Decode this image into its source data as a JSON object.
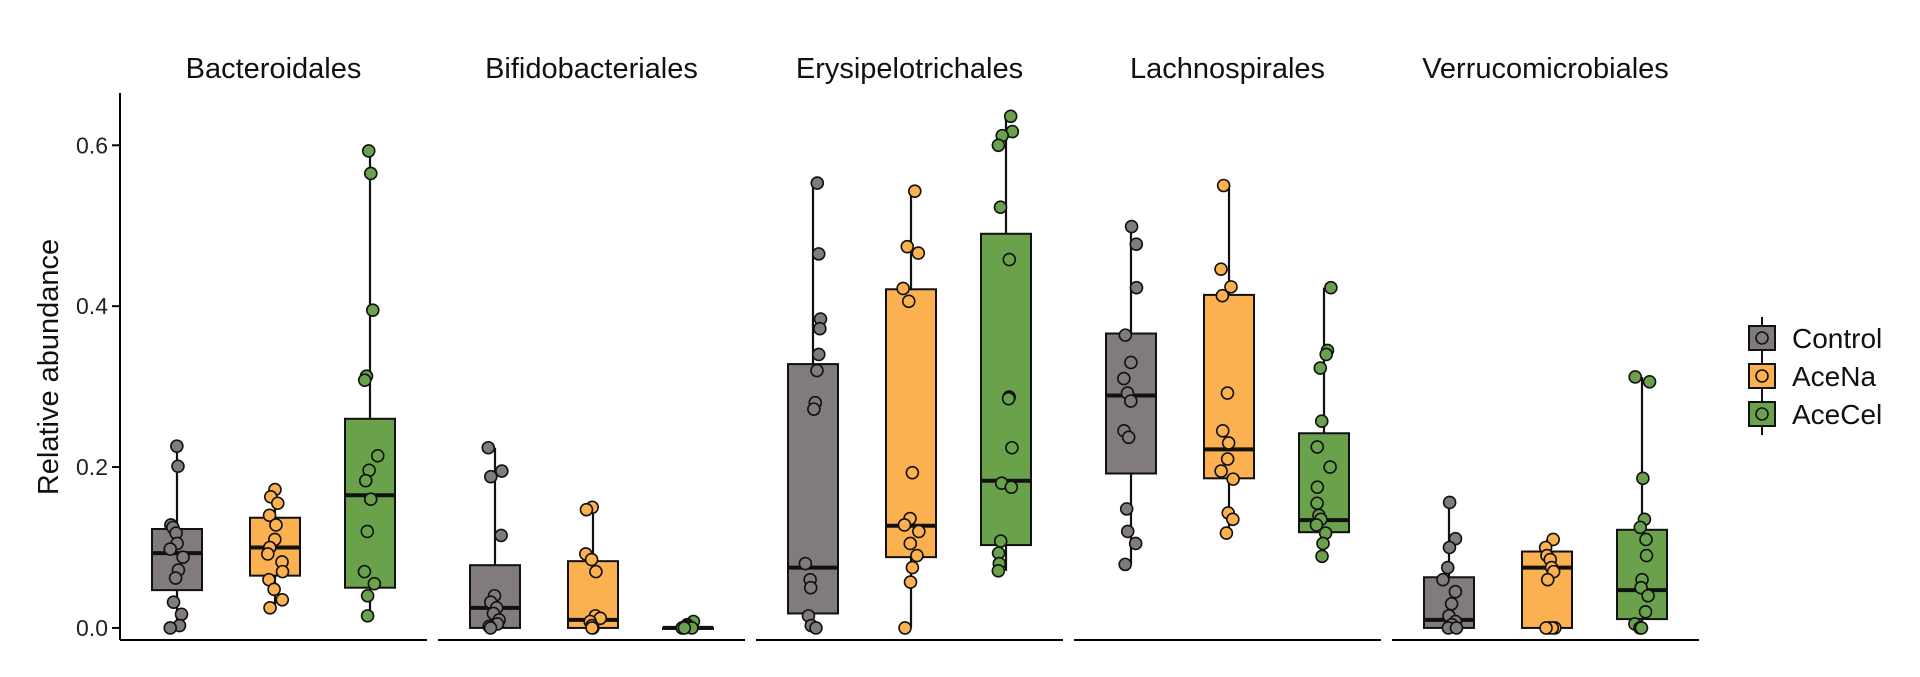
{
  "chart_data": {
    "type": "boxplot",
    "ylabel": "Relative abundance",
    "ylim": [
      -0.015,
      0.665
    ],
    "yticks": [
      0.0,
      0.2,
      0.4,
      0.6
    ],
    "ytick_labels": [
      "0.0",
      "0.2",
      "0.4",
      "0.6"
    ],
    "grid": false,
    "legend_position": "right",
    "groups": [
      {
        "name": "Control",
        "color": "#817b7b"
      },
      {
        "name": "AceNa",
        "color": "#fbb150"
      },
      {
        "name": "AceCel",
        "color": "#6aa24c"
      }
    ],
    "facets": [
      {
        "title": "Bacteroidales",
        "boxes": [
          {
            "group": "Control",
            "q1": 0.047,
            "median": 0.093,
            "q3": 0.123,
            "whisker_low": 0.0,
            "whisker_high": 0.226,
            "points": [
              0.226,
              0.201,
              0.128,
              0.125,
              0.118,
              0.105,
              0.098,
              0.088,
              0.072,
              0.062,
              0.032,
              0.017,
              0.003,
              0.0
            ]
          },
          {
            "group": "AceNa",
            "q1": 0.065,
            "median": 0.1,
            "q3": 0.137,
            "whisker_low": 0.025,
            "whisker_high": 0.172,
            "points": [
              0.172,
              0.163,
              0.155,
              0.14,
              0.128,
              0.11,
              0.1,
              0.092,
              0.082,
              0.07,
              0.06,
              0.048,
              0.035,
              0.025
            ]
          },
          {
            "group": "AceCel",
            "q1": 0.05,
            "median": 0.165,
            "q3": 0.26,
            "whisker_low": 0.015,
            "whisker_high": 0.593,
            "points": [
              0.593,
              0.565,
              0.395,
              0.313,
              0.308,
              0.214,
              0.196,
              0.183,
              0.16,
              0.12,
              0.07,
              0.055,
              0.04,
              0.015
            ]
          }
        ]
      },
      {
        "title": "Bifidobacteriales",
        "boxes": [
          {
            "group": "Control",
            "q1": 0.0,
            "median": 0.025,
            "q3": 0.078,
            "whisker_low": 0.0,
            "whisker_high": 0.224,
            "points": [
              0.224,
              0.195,
              0.188,
              0.115,
              0.04,
              0.032,
              0.025,
              0.018,
              0.01,
              0.005,
              0.002,
              0.0
            ]
          },
          {
            "group": "AceNa",
            "q1": 0.0,
            "median": 0.01,
            "q3": 0.083,
            "whisker_low": 0.0,
            "whisker_high": 0.15,
            "points": [
              0.15,
              0.147,
              0.092,
              0.085,
              0.07,
              0.015,
              0.012,
              0.008,
              0.003,
              0.0,
              0.0
            ]
          },
          {
            "group": "AceCel",
            "q1": 0.0,
            "median": 0.0,
            "q3": 0.0,
            "whisker_low": 0.0,
            "whisker_high": 0.008,
            "points": [
              0.008,
              0.004,
              0.002,
              0.001,
              0.0,
              0.0,
              0.0,
              0.0
            ]
          }
        ]
      },
      {
        "title": "Erysipelotrichales",
        "boxes": [
          {
            "group": "Control",
            "q1": 0.018,
            "median": 0.075,
            "q3": 0.328,
            "whisker_low": 0.0,
            "whisker_high": 0.553,
            "points": [
              0.553,
              0.465,
              0.384,
              0.372,
              0.34,
              0.32,
              0.28,
              0.272,
              0.08,
              0.06,
              0.05,
              0.015,
              0.003,
              0.0
            ]
          },
          {
            "group": "AceNa",
            "q1": 0.088,
            "median": 0.127,
            "q3": 0.421,
            "whisker_low": 0.0,
            "whisker_high": 0.543,
            "points": [
              0.543,
              0.474,
              0.466,
              0.422,
              0.406,
              0.193,
              0.136,
              0.128,
              0.12,
              0.105,
              0.09,
              0.075,
              0.057,
              0.0
            ]
          },
          {
            "group": "AceCel",
            "q1": 0.103,
            "median": 0.183,
            "q3": 0.49,
            "whisker_low": 0.071,
            "whisker_high": 0.636,
            "points": [
              0.636,
              0.617,
              0.612,
              0.6,
              0.523,
              0.458,
              0.287,
              0.285,
              0.224,
              0.18,
              0.175,
              0.108,
              0.093,
              0.08,
              0.071
            ]
          }
        ]
      },
      {
        "title": "Lachnospirales",
        "boxes": [
          {
            "group": "Control",
            "q1": 0.192,
            "median": 0.289,
            "q3": 0.366,
            "whisker_low": 0.079,
            "whisker_high": 0.499,
            "points": [
              0.499,
              0.477,
              0.423,
              0.364,
              0.33,
              0.31,
              0.292,
              0.282,
              0.245,
              0.237,
              0.148,
              0.12,
              0.105,
              0.079
            ]
          },
          {
            "group": "AceNa",
            "q1": 0.186,
            "median": 0.222,
            "q3": 0.414,
            "whisker_low": 0.118,
            "whisker_high": 0.55,
            "points": [
              0.55,
              0.446,
              0.424,
              0.413,
              0.292,
              0.245,
              0.23,
              0.21,
              0.195,
              0.185,
              0.143,
              0.135,
              0.118
            ]
          },
          {
            "group": "AceCel",
            "q1": 0.119,
            "median": 0.134,
            "q3": 0.242,
            "whisker_low": 0.089,
            "whisker_high": 0.423,
            "points": [
              0.423,
              0.345,
              0.34,
              0.323,
              0.257,
              0.225,
              0.2,
              0.175,
              0.155,
              0.14,
              0.135,
              0.128,
              0.118,
              0.105,
              0.089
            ]
          }
        ]
      },
      {
        "title": "Verrucomicrobiales",
        "boxes": [
          {
            "group": "Control",
            "q1": 0.0,
            "median": 0.01,
            "q3": 0.063,
            "whisker_low": 0.0,
            "whisker_high": 0.156,
            "points": [
              0.156,
              0.111,
              0.1,
              0.075,
              0.06,
              0.045,
              0.03,
              0.015,
              0.008,
              0.004,
              0.0,
              0.0
            ]
          },
          {
            "group": "AceNa",
            "q1": 0.0,
            "median": 0.075,
            "q3": 0.095,
            "whisker_low": 0.0,
            "whisker_high": 0.11,
            "points": [
              0.11,
              0.1,
              0.09,
              0.085,
              0.075,
              0.07,
              0.06,
              0.0,
              0.0,
              0.0,
              0.0
            ]
          },
          {
            "group": "AceCel",
            "q1": 0.011,
            "median": 0.047,
            "q3": 0.122,
            "whisker_low": 0.0,
            "whisker_high": 0.312,
            "points": [
              0.312,
              0.306,
              0.186,
              0.135,
              0.125,
              0.11,
              0.09,
              0.06,
              0.05,
              0.04,
              0.02,
              0.005,
              0.0,
              0.0
            ]
          }
        ]
      }
    ]
  }
}
